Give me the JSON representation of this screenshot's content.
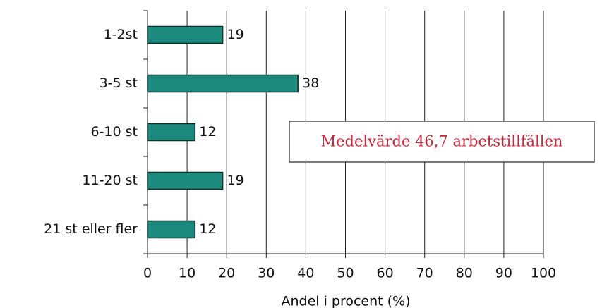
{
  "chart_data": {
    "type": "bar",
    "orientation": "horizontal",
    "categories": [
      "1-2st",
      "3-5 st",
      "6-10 st",
      "11-20 st",
      "21 st eller fler"
    ],
    "values": [
      19,
      38,
      12,
      19,
      12
    ],
    "color": "#1b8a7c",
    "xlim": [
      0,
      100
    ],
    "xticks": [
      0,
      10,
      20,
      30,
      40,
      50,
      60,
      70,
      80,
      90,
      100
    ],
    "grid": true,
    "xlabel": "Andel i procent (%)",
    "annotation": "Medelvärde 46,7 arbetstillfällen"
  }
}
